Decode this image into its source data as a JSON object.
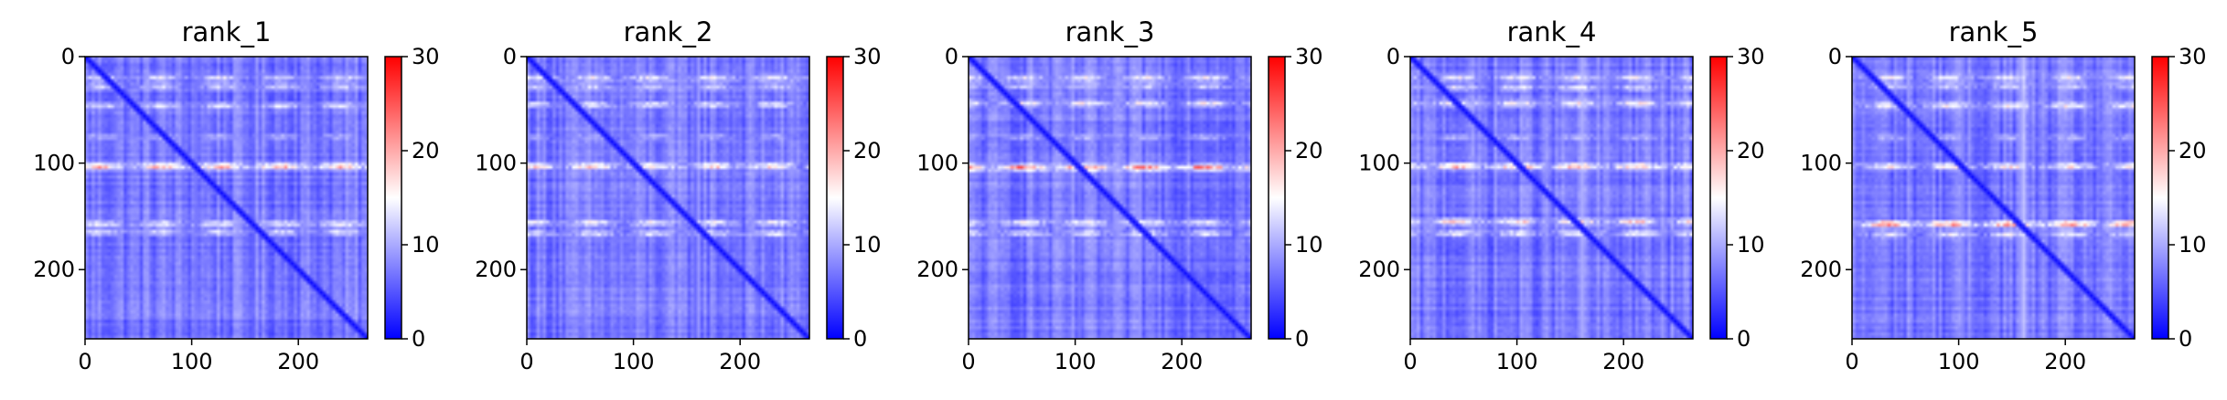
{
  "figure_type": "heatmap grid",
  "chart_data": [
    {
      "type": "heatmap",
      "title": "rank_1",
      "xlim": [
        0,
        265
      ],
      "ylim": [
        265,
        0
      ],
      "x_ticks": [
        0,
        100,
        200
      ],
      "y_ticks": [
        0,
        100,
        200
      ],
      "colorbar": {
        "range": [
          0,
          30
        ],
        "ticks": [
          0,
          10,
          20,
          30
        ],
        "colormap": "bwr"
      },
      "bands": [
        {
          "row": 20,
          "value": 14
        },
        {
          "row": 28,
          "value": 13
        },
        {
          "row": 46,
          "value": 14
        },
        {
          "row": 75,
          "value": 11
        },
        {
          "row": 103,
          "value": 22
        },
        {
          "row": 157,
          "value": 16
        },
        {
          "row": 165,
          "value": 14
        }
      ],
      "col_highlights": [
        {
          "col": 160,
          "value": 8
        },
        {
          "col": 105,
          "value": 7
        }
      ],
      "diagonal": true
    },
    {
      "type": "heatmap",
      "title": "rank_2",
      "xlim": [
        0,
        265
      ],
      "ylim": [
        265,
        0
      ],
      "x_ticks": [
        0,
        100,
        200
      ],
      "y_ticks": [
        0,
        100,
        200
      ],
      "colorbar": {
        "range": [
          0,
          30
        ],
        "ticks": [
          0,
          10,
          20,
          30
        ],
        "colormap": "bwr"
      },
      "bands": [
        {
          "row": 20,
          "value": 15
        },
        {
          "row": 28,
          "value": 13
        },
        {
          "row": 45,
          "value": 15
        },
        {
          "row": 75,
          "value": 11
        },
        {
          "row": 103,
          "value": 20
        },
        {
          "row": 156,
          "value": 16
        },
        {
          "row": 166,
          "value": 15
        }
      ],
      "col_highlights": [
        {
          "col": 160,
          "value": 9
        },
        {
          "col": 105,
          "value": 7
        }
      ],
      "diagonal": true
    },
    {
      "type": "heatmap",
      "title": "rank_3",
      "xlim": [
        0,
        265
      ],
      "ylim": [
        265,
        0
      ],
      "x_ticks": [
        0,
        100,
        200
      ],
      "y_ticks": [
        0,
        100,
        200
      ],
      "colorbar": {
        "range": [
          0,
          30
        ],
        "ticks": [
          0,
          10,
          20,
          30
        ],
        "colormap": "bwr"
      },
      "bands": [
        {
          "row": 20,
          "value": 15
        },
        {
          "row": 28,
          "value": 13
        },
        {
          "row": 44,
          "value": 16
        },
        {
          "row": 76,
          "value": 11
        },
        {
          "row": 104,
          "value": 23
        },
        {
          "row": 156,
          "value": 16
        },
        {
          "row": 166,
          "value": 15
        }
      ],
      "col_highlights": [
        {
          "col": 160,
          "value": 9
        },
        {
          "col": 105,
          "value": 7
        }
      ],
      "diagonal": true
    },
    {
      "type": "heatmap",
      "title": "rank_4",
      "xlim": [
        0,
        265
      ],
      "ylim": [
        265,
        0
      ],
      "x_ticks": [
        0,
        100,
        200
      ],
      "y_ticks": [
        0,
        100,
        200
      ],
      "colorbar": {
        "range": [
          0,
          30
        ],
        "ticks": [
          0,
          10,
          20,
          30
        ],
        "colormap": "bwr"
      },
      "bands": [
        {
          "row": 20,
          "value": 15
        },
        {
          "row": 29,
          "value": 14
        },
        {
          "row": 44,
          "value": 16
        },
        {
          "row": 76,
          "value": 11
        },
        {
          "row": 103,
          "value": 22
        },
        {
          "row": 155,
          "value": 18
        },
        {
          "row": 166,
          "value": 16
        }
      ],
      "col_highlights": [
        {
          "col": 160,
          "value": 11
        },
        {
          "col": 105,
          "value": 7
        }
      ],
      "diagonal": true
    },
    {
      "type": "heatmap",
      "title": "rank_5",
      "xlim": [
        0,
        265
      ],
      "ylim": [
        265,
        0
      ],
      "x_ticks": [
        0,
        100,
        200
      ],
      "y_ticks": [
        0,
        100,
        200
      ],
      "colorbar": {
        "range": [
          0,
          30
        ],
        "ticks": [
          0,
          10,
          20,
          30
        ],
        "colormap": "bwr"
      },
      "bands": [
        {
          "row": 20,
          "value": 15
        },
        {
          "row": 28,
          "value": 13
        },
        {
          "row": 46,
          "value": 16
        },
        {
          "row": 76,
          "value": 11
        },
        {
          "row": 103,
          "value": 18
        },
        {
          "row": 157,
          "value": 24
        },
        {
          "row": 167,
          "value": 14
        }
      ],
      "col_highlights": [
        {
          "col": 160,
          "value": 13
        },
        {
          "col": 105,
          "value": 8
        }
      ],
      "diagonal": true
    }
  ]
}
